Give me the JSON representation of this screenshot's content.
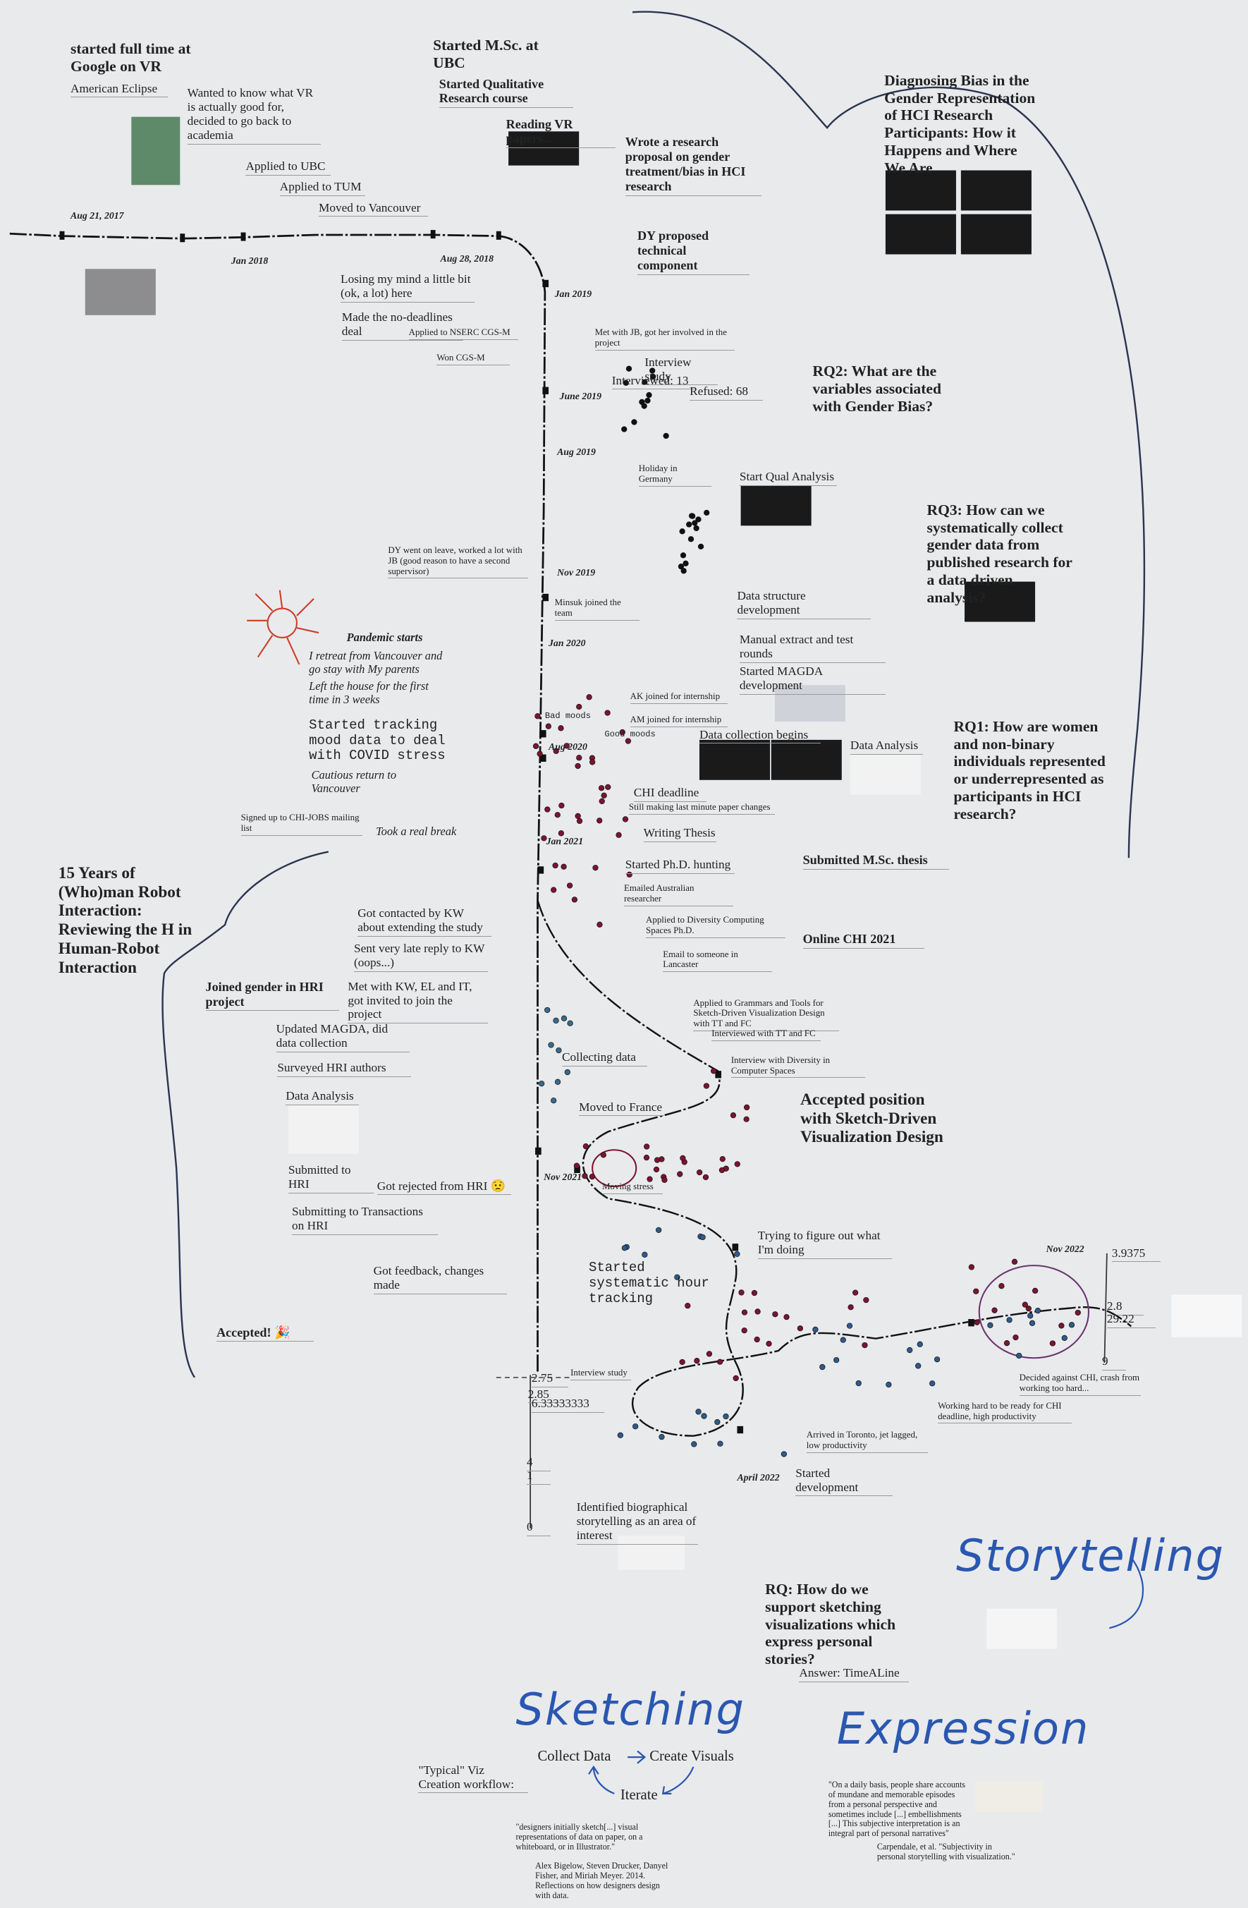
{
  "notes": [
    "started full time at Google on VR",
    "American Eclipse",
    "Wanted to know what VR is actually good for, decided to go back to academia",
    "Aug 21, 2017",
    "Applied to UBC",
    "Applied to TUM",
    "Moved to Vancouver",
    "Jan 2018",
    "Started M.Sc. at UBC",
    "Started Qualitative Research course",
    "Reading VR papers...",
    "Wrote a research proposal on gender treatment/bias in HCI research",
    "Aug 28, 2018",
    "DY proposed technical component",
    "Losing my mind a little bit (ok, a lot) here",
    "Jan 2019",
    "Made the no-deadlines deal",
    "Applied to NSERC CGS-M",
    "Won CGS-M",
    "Met with JB, got her involved in the project",
    "Interview study",
    "Interviewed: 13",
    "Refused: 68",
    "June 2019",
    "Aug 2019",
    "Holiday in Germany",
    "Start Qual Analysis",
    "DY went on leave, worked a lot with JB (good reason to have a second supervisor)",
    "Nov 2019",
    "Minsuk joined the team",
    "Data structure development",
    "Pandemic starts",
    "Jan 2020",
    "Manual extract and test rounds",
    "I retreat from Vancouver and go stay with My parents",
    "Started MAGDA development",
    "Left the house for the first time in 3 weeks",
    "AK joined for internship",
    "Started tracking mood data to deal with COVID stress",
    "Bad moods",
    "AM joined for internship",
    "Good moods",
    "Data collection begins",
    "Aug 2020",
    "Data Analysis",
    "Cautious return to Vancouver",
    "CHI deadline",
    "Still making last minute paper changes",
    "Signed up to CHI-JOBS mailing list",
    "Took a real break",
    "Writing Thesis",
    "Jan 2021",
    "Submitted M.Sc. thesis",
    "Started Ph.D. hunting",
    "Emailed Australian researcher",
    "15 Years of (Who)man Robot Interaction: Reviewing the H in Human-Robot Interaction",
    "Got contacted by KW about extending the study",
    "Applied to Diversity Computing Spaces Ph.D.",
    "Online CHI 2021",
    "Sent very late reply to KW (oops...)",
    "Email to someone in Lancaster",
    "Joined gender in HRI project",
    "Met with KW, EL and IT, got invited to join the project",
    "Applied to Grammars and Tools for Sketch-Driven Visualization Design with TT and FC",
    "Updated MAGDA, did data collection",
    "Interviewed with TT and FC",
    "Collecting data",
    "Interview with Diversity in Computer Spaces",
    "Surveyed HRI authors",
    "Data Analysis",
    "Accepted position with Sketch-Driven Visualization Design",
    "Moved to France",
    "Submitted to HRI",
    "Nov 2021",
    "Got rejected from HRI 😟",
    "Moving stress",
    "Submitting to Transactions on HRI",
    "Trying to figure out what I'm doing",
    "Got feedback, changes made",
    "Started systematic hour tracking",
    "Nov 2022",
    "Accepted! 🎉",
    "Interview study",
    "Decided against CHI, crash from working too hard...",
    "Working hard to be ready for CHI deadline, high productivity",
    "Arrived in Toronto, jet lagged, low productivity",
    "Started development",
    "April 2022",
    "Identified biographical storytelling as an area of interest",
    "3.9375",
    "2.8",
    "29.22",
    "9",
    "2.75",
    "2.85",
    "6.33333333",
    "4",
    "1",
    "0",
    "Diagnosing Bias in the Gender Representation of HCI Research Participants: How it Happens and Where We Are",
    "RQ2: What are the variables associated with Gender Bias?",
    "RQ3: How can we systematically collect gender data from published research for a data driven analysis?",
    "RQ1: How are women and non-binary individuals represented or underrepresented as participants in HCI research?",
    "Storytelling",
    "RQ: How do we support sketching visualizations which express personal stories?",
    "Answer: TimeALine",
    "Sketching",
    "Expression",
    "Collect Data",
    "Create Visuals",
    "Iterate",
    "\"Typical\" Viz Creation workflow:",
    "\"On a daily basis, people share accounts of mundane and memorable episodes from a personal perspective and sometimes include [...] embellishments [...] This subjective interpretation is an integral part of personal narratives\"",
    "Carpendale, et al. \"Subjectivity in personal storytelling with visualization.\"",
    "\"designers initially sketch[...] visual representations of data on paper, on a whiteboard, or in Illustrator.\"",
    "Alex Bigelow, Steven Drucker, Danyel Fisher, and Miriah Meyer. 2014. Reflections on how designers design with data."
  ]
}
